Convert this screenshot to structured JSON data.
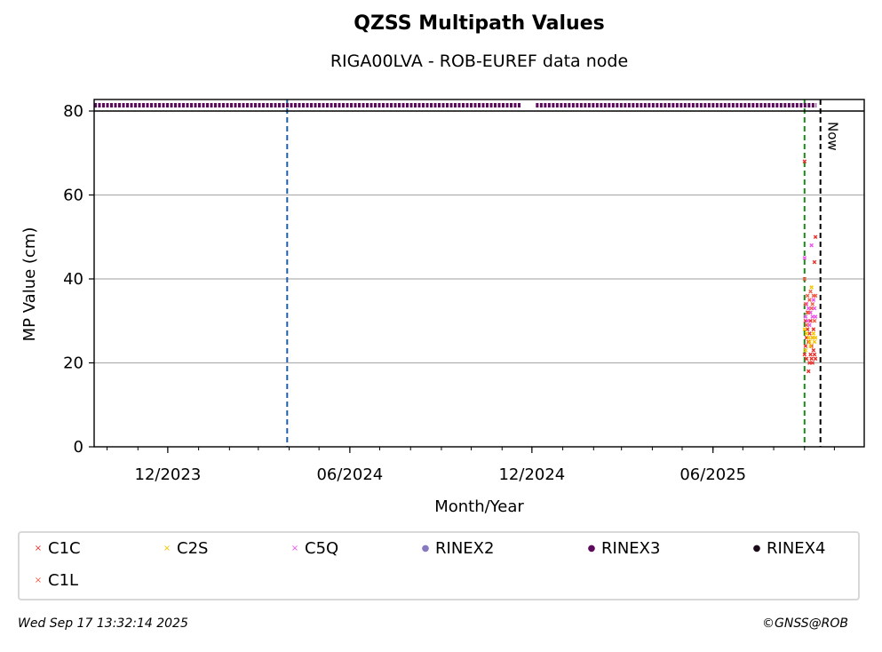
{
  "header": {
    "title": "QZSS Multipath Values",
    "subtitle": "RIGA00LVA - ROB-EUREF data node"
  },
  "chart_data": {
    "type": "scatter",
    "title": "QZSS Multipath Values",
    "subtitle": "RIGA00LVA - ROB-EUREF data node",
    "xlabel": "Month/Year",
    "ylabel": "MP Value (cm)",
    "ylim": [
      0,
      80
    ],
    "xlim": [
      "2023-09-18",
      "2025-10-31"
    ],
    "x_ticks": [
      "12/2023",
      "06/2024",
      "12/2024",
      "06/2025"
    ],
    "y_ticks": [
      0,
      20,
      40,
      60,
      80
    ],
    "grid": "horizontal",
    "vertical_markers": [
      {
        "date": "2024-03-30",
        "color": "#1f5fa8",
        "style": "dashed"
      },
      {
        "date": "2025-09-01",
        "color": "#1a8a1a",
        "style": "dashed"
      },
      {
        "date": "2025-09-17",
        "color": "#000000",
        "style": "dashed",
        "label": "Now"
      }
    ],
    "availability": {
      "series": "RINEX3",
      "color": "#5c0a5c",
      "intervals": [
        [
          "2023-09-18",
          "2024-11-20"
        ],
        [
          "2024-12-05",
          "2025-09-13"
        ]
      ]
    },
    "series": [
      {
        "name": "C1C",
        "color": "#e8302a",
        "marker": "x",
        "points": [
          {
            "x": "2025-09-01",
            "y": 68.0
          },
          {
            "x": "2025-09-01",
            "y": 22.0
          },
          {
            "x": "2025-09-02",
            "y": 30.0
          },
          {
            "x": "2025-09-02",
            "y": 24.0
          },
          {
            "x": "2025-09-03",
            "y": 26.0
          },
          {
            "x": "2025-09-03",
            "y": 21.0
          },
          {
            "x": "2025-09-04",
            "y": 28.0
          },
          {
            "x": "2025-09-04",
            "y": 32.0
          },
          {
            "x": "2025-09-05",
            "y": 18.0
          },
          {
            "x": "2025-09-05",
            "y": 25.0
          },
          {
            "x": "2025-09-06",
            "y": 20.0
          },
          {
            "x": "2025-09-06",
            "y": 27.0
          },
          {
            "x": "2025-09-07",
            "y": 22.0
          },
          {
            "x": "2025-09-07",
            "y": 30.0
          },
          {
            "x": "2025-09-08",
            "y": 24.0
          },
          {
            "x": "2025-09-08",
            "y": 21.0
          },
          {
            "x": "2025-09-09",
            "y": 26.0
          },
          {
            "x": "2025-09-09",
            "y": 20.0
          },
          {
            "x": "2025-09-10",
            "y": 23.0
          },
          {
            "x": "2025-09-10",
            "y": 28.0
          },
          {
            "x": "2025-09-11",
            "y": 22.0
          },
          {
            "x": "2025-09-11",
            "y": 44.0
          },
          {
            "x": "2025-09-12",
            "y": 21.0
          },
          {
            "x": "2025-09-12",
            "y": 50.0
          }
        ]
      },
      {
        "name": "C2S",
        "color": "#f5c400",
        "marker": "x",
        "points": [
          {
            "x": "2025-09-01",
            "y": 28.0
          },
          {
            "x": "2025-09-02",
            "y": 23.0
          },
          {
            "x": "2025-09-03",
            "y": 27.0
          },
          {
            "x": "2025-09-04",
            "y": 30.0
          },
          {
            "x": "2025-09-05",
            "y": 26.0
          },
          {
            "x": "2025-09-06",
            "y": 25.0
          },
          {
            "x": "2025-09-07",
            "y": 24.0
          },
          {
            "x": "2025-09-08",
            "y": 38.0
          },
          {
            "x": "2025-09-09",
            "y": 26.0
          },
          {
            "x": "2025-09-10",
            "y": 27.0
          },
          {
            "x": "2025-09-11",
            "y": 25.0
          },
          {
            "x": "2025-09-12",
            "y": 26.0
          }
        ]
      },
      {
        "name": "C5Q",
        "color": "#ee55ee",
        "marker": "x",
        "points": [
          {
            "x": "2025-09-01",
            "y": 45.0
          },
          {
            "x": "2025-09-02",
            "y": 31.0
          },
          {
            "x": "2025-09-03",
            "y": 34.0
          },
          {
            "x": "2025-09-04",
            "y": 30.0
          },
          {
            "x": "2025-09-05",
            "y": 33.0
          },
          {
            "x": "2025-09-06",
            "y": 29.0
          },
          {
            "x": "2025-09-07",
            "y": 32.0
          },
          {
            "x": "2025-09-08",
            "y": 48.0
          },
          {
            "x": "2025-09-09",
            "y": 31.0
          },
          {
            "x": "2025-09-10",
            "y": 35.0
          },
          {
            "x": "2025-09-11",
            "y": 33.0
          },
          {
            "x": "2025-09-12",
            "y": 31.0
          }
        ]
      },
      {
        "name": "C1L",
        "color": "#ef5f4a",
        "marker": "x",
        "points": [
          {
            "x": "2025-09-01",
            "y": 40.0
          },
          {
            "x": "2025-09-02",
            "y": 34.0
          },
          {
            "x": "2025-09-03",
            "y": 29.0
          },
          {
            "x": "2025-09-04",
            "y": 36.0
          },
          {
            "x": "2025-09-05",
            "y": 32.0
          },
          {
            "x": "2025-09-06",
            "y": 35.0
          },
          {
            "x": "2025-09-07",
            "y": 37.0
          },
          {
            "x": "2025-09-08",
            "y": 33.0
          },
          {
            "x": "2025-09-09",
            "y": 34.0
          },
          {
            "x": "2025-09-10",
            "y": 36.0
          },
          {
            "x": "2025-09-11",
            "y": 30.0
          },
          {
            "x": "2025-09-12",
            "y": 36.0
          }
        ]
      }
    ]
  },
  "legend": {
    "items": [
      {
        "label": "C1C",
        "color": "#e8302a",
        "marker": "×"
      },
      {
        "label": "C2S",
        "color": "#f5c400",
        "marker": "×"
      },
      {
        "label": "C5Q",
        "color": "#ee55ee",
        "marker": "×"
      },
      {
        "label": "RINEX2",
        "color": "#8878c0",
        "marker": "●"
      },
      {
        "label": "RINEX3",
        "color": "#5c0a5c",
        "marker": "●"
      },
      {
        "label": "RINEX4",
        "color": "#1a0a1a",
        "marker": "●"
      },
      {
        "label": "C1L",
        "color": "#ef5f4a",
        "marker": "×"
      }
    ]
  },
  "footer": {
    "timestamp": "Wed Sep 17 13:32:14 2025",
    "credit": "©GNSS@ROB"
  }
}
